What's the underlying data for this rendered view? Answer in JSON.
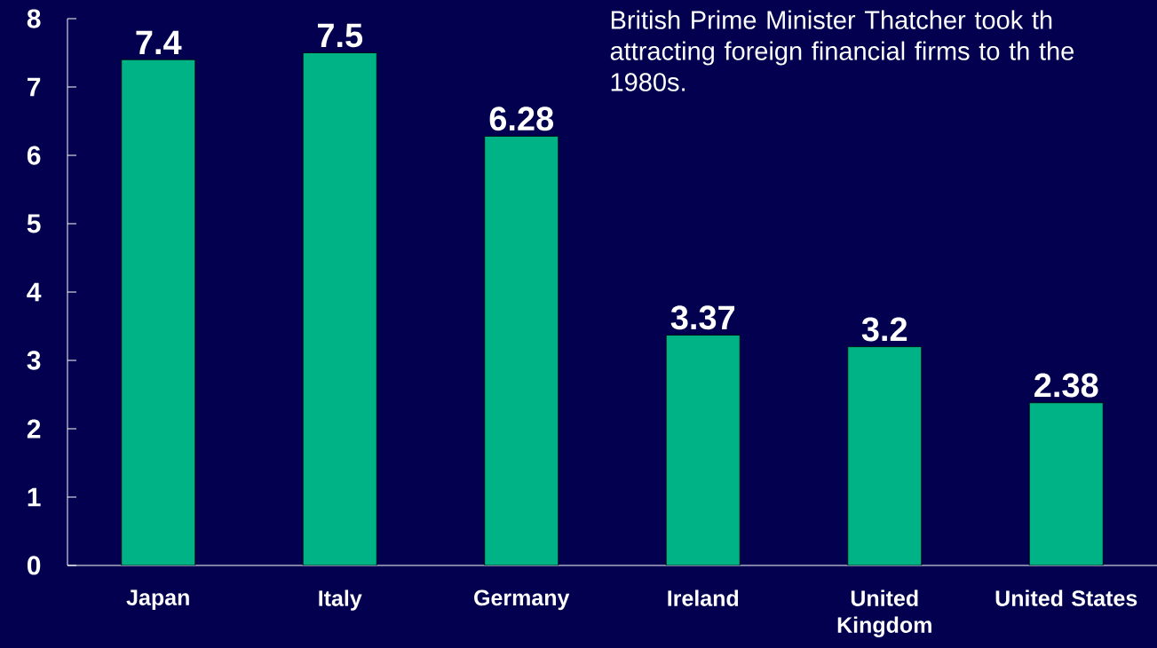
{
  "chart_data": {
    "type": "bar",
    "categories": [
      "Japan",
      "Italy",
      "Germany",
      "Ireland",
      "United Kingdom",
      "United States"
    ],
    "values": [
      7.4,
      7.5,
      6.28,
      3.37,
      3.2,
      2.38
    ],
    "color": "#00b386",
    "ylim": [
      0,
      8
    ],
    "yticks": [
      0,
      1,
      2,
      3,
      4,
      5,
      6,
      7,
      8
    ],
    "data_labels": true,
    "annotations": [
      "British Prime Minister Thatcher took th attracting foreign financial firms to th the 1980s."
    ]
  }
}
